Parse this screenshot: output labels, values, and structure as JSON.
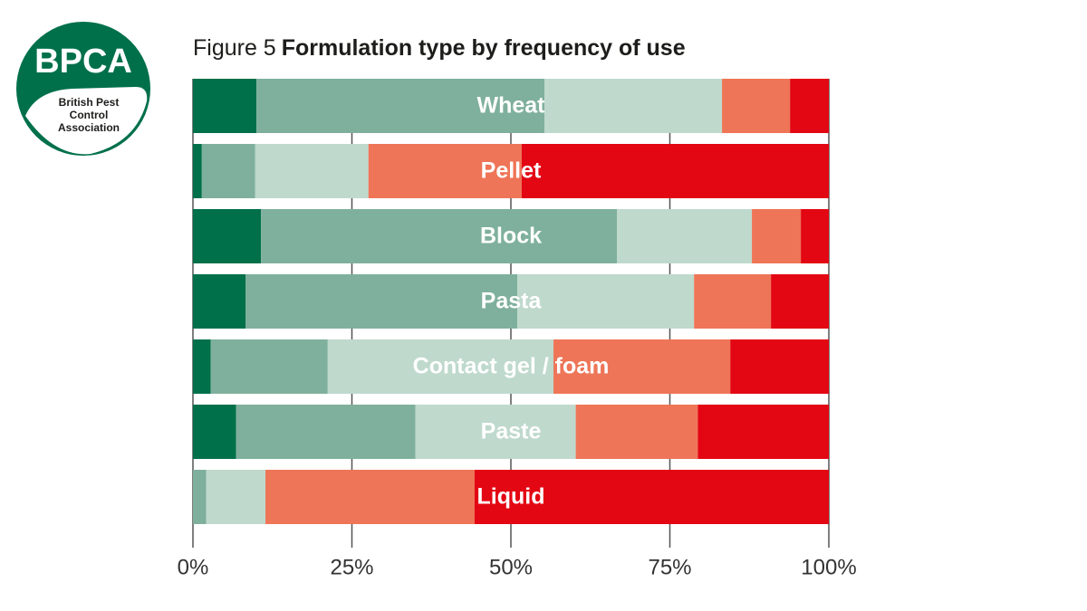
{
  "logo": {
    "name": "BPCA",
    "subtitle_lines": [
      "British Pest",
      "Control",
      "Association"
    ]
  },
  "chart_data": {
    "type": "stacked_bar_horizontal",
    "figure_label": "Figure 5",
    "title": "Formulation type by frequency of use",
    "categories": [
      "Wheat",
      "Pellet",
      "Block",
      "Pasta",
      "Contact gel / foam",
      "Paste",
      "Liquid"
    ],
    "series": [
      {
        "color": "#00704a",
        "values": [
          10.0,
          1.4,
          10.7,
          8.3,
          2.8,
          6.8,
          0
        ]
      },
      {
        "color": "#7fb09d",
        "values": [
          45.3,
          8.4,
          56.0,
          42.7,
          18.4,
          28.2,
          2.1
        ]
      },
      {
        "color": "#bfd9cd",
        "values": [
          27.9,
          17.8,
          21.2,
          27.8,
          35.5,
          25.2,
          9.3
        ]
      },
      {
        "color": "#ee7557",
        "values": [
          10.7,
          24.1,
          7.7,
          12.1,
          27.8,
          19.2,
          32.9
        ]
      },
      {
        "color": "#e30613",
        "values": [
          6.1,
          48.3,
          4.4,
          9.1,
          15.5,
          20.6,
          55.7
        ]
      }
    ],
    "xlim": [
      0,
      100
    ],
    "xticks": [
      {
        "value": 0,
        "label": "0%"
      },
      {
        "value": 25,
        "label": "25%"
      },
      {
        "value": 50,
        "label": "50%"
      },
      {
        "value": 75,
        "label": "75%"
      },
      {
        "value": 100,
        "label": "100%"
      }
    ],
    "grid": true
  }
}
